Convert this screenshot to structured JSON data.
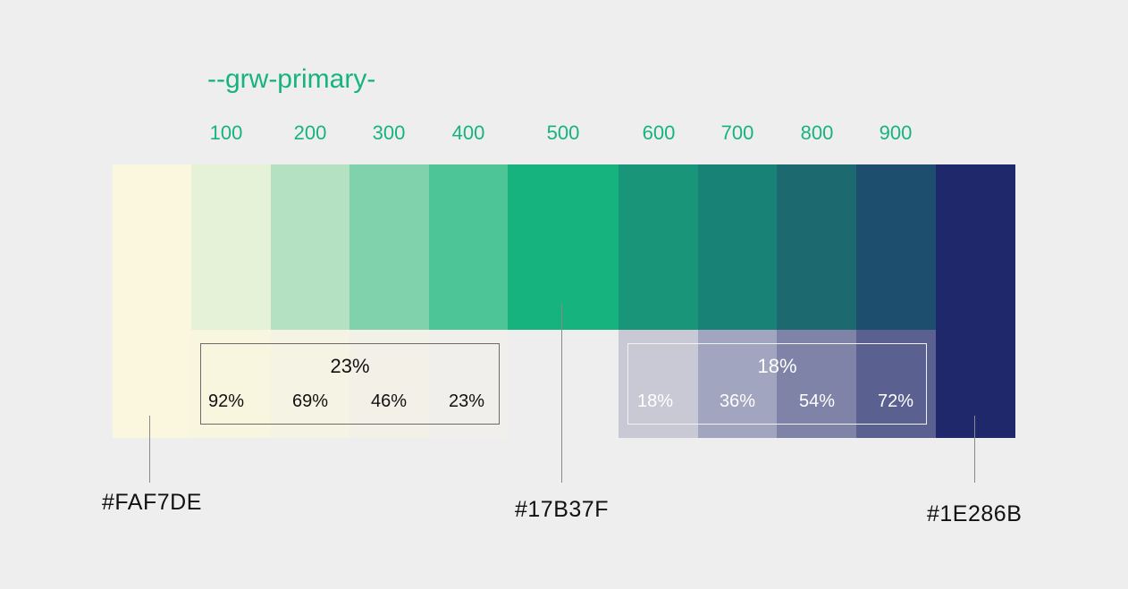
{
  "title": "--grw-primary-",
  "steps": [
    "100",
    "200",
    "300",
    "400",
    "500",
    "600",
    "700",
    "800",
    "900"
  ],
  "base_colors": {
    "light": "#FAF7DE",
    "primary": "#17B37F",
    "dark": "#1E286B"
  },
  "labels": {
    "light_hex": "#FAF7DE",
    "primary_hex": "#17B37F",
    "dark_hex": "#1E286B"
  },
  "palette": [
    "#e6f2d8",
    "#b3e1c1",
    "#80d2ad",
    "#4ec596",
    "#17b37f",
    "#199679",
    "#198276",
    "#1c6a6f",
    "#1d4e6d"
  ],
  "light_mix": {
    "label": "23%",
    "percentages": [
      "92%",
      "69%",
      "46%",
      "23%"
    ],
    "swatch_colors": [
      "#f8f6df",
      "#f5f3e3",
      "#f2f0e7",
      "#f0efeb"
    ],
    "text_color": "#111111"
  },
  "dark_mix": {
    "label": "18%",
    "percentages": [
      "18%",
      "36%",
      "54%",
      "72%"
    ],
    "swatch_colors": [
      "#c9c9d6",
      "#a2a5bf",
      "#8083a8",
      "#5a6090"
    ],
    "text_color": "#ffffff"
  }
}
